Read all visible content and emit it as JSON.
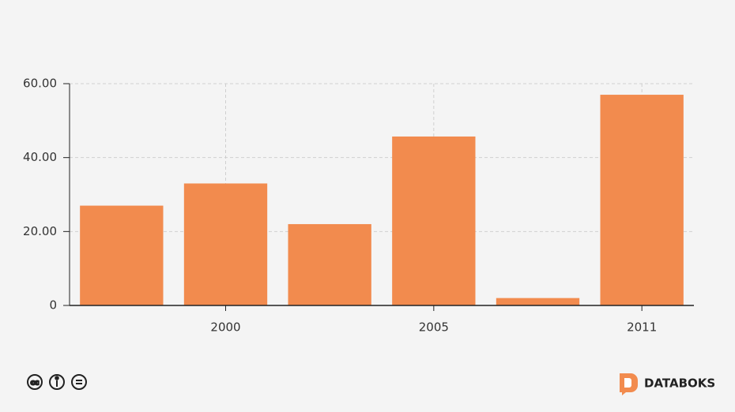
{
  "chart_data": {
    "type": "bar",
    "categories": [
      null,
      "2000",
      null,
      "2005",
      null,
      "2011"
    ],
    "values": [
      27,
      33,
      22,
      45.7,
      2,
      57
    ],
    "color": "#f28b4e",
    "ylim": [
      0,
      60
    ],
    "yticks": [
      0,
      {
        "value": 20,
        "label": "20.00"
      },
      {
        "value": 40,
        "label": "40.00"
      },
      {
        "value": 60,
        "label": "60.00"
      }
    ],
    "grid": true
  },
  "footer": {
    "brand": "DATABOKS"
  }
}
